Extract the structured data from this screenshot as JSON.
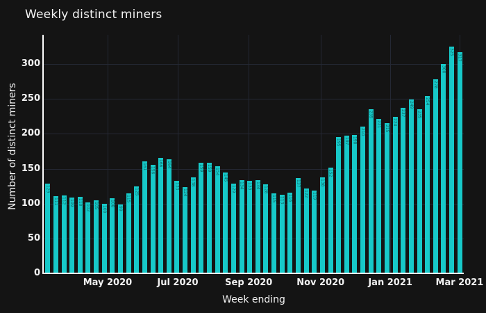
{
  "page": {
    "background_color": "#141414"
  },
  "chart": {
    "title": "Weekly distinct miners",
    "y_axis_title": "Number of distinct miners",
    "x_axis_title": "Week ending"
  },
  "chart_data": {
    "type": "bar",
    "title": "Weekly distinct miners",
    "xlabel": "Week ending",
    "ylabel": "Number of distinct miners",
    "bar_color": "#17c9c9",
    "bar_label_color": "rgba(0,0,0,0.5)",
    "background_color": "#141414",
    "grid_color": "#242834",
    "axis_line_color": "#ffffff",
    "text_color": "#f2f2f2",
    "grid": true,
    "legend": false,
    "ylim": [
      0,
      342
    ],
    "y_ticks": [
      0,
      50,
      100,
      150,
      200,
      250,
      300
    ],
    "x_ticks": [
      {
        "label": "May 2020",
        "pos": 0.152
      },
      {
        "label": "Jul 2020",
        "pos": 0.319
      },
      {
        "label": "Sep 2020",
        "pos": 0.488
      },
      {
        "label": "Nov 2020",
        "pos": 0.659
      },
      {
        "label": "Jan 2021",
        "pos": 0.825
      },
      {
        "label": "Mar 2021",
        "pos": 0.99
      }
    ],
    "x_unit": "week",
    "values": [
      129,
      111,
      112,
      109,
      110,
      102,
      105,
      100,
      108,
      99,
      115,
      125,
      161,
      156,
      166,
      164,
      133,
      124,
      138,
      159,
      159,
      154,
      145,
      129,
      134,
      133,
      134,
      128,
      115,
      113,
      116,
      137,
      122,
      119,
      138,
      152,
      195,
      197,
      198,
      210,
      235,
      221,
      215,
      224,
      237,
      249,
      235,
      254,
      278,
      300,
      325,
      317
    ]
  }
}
